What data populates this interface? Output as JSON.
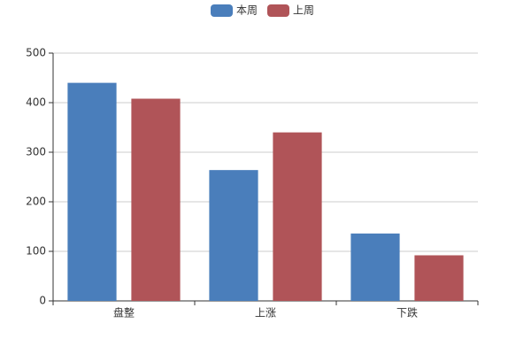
{
  "chart_data": {
    "type": "bar",
    "categories": [
      "盘整",
      "上涨",
      "下跌"
    ],
    "series": [
      {
        "name": "本周",
        "color": "#4a7ebb",
        "values": [
          440,
          264,
          136
        ]
      },
      {
        "name": "上周",
        "color": "#b05458",
        "values": [
          408,
          340,
          92
        ]
      }
    ],
    "ylim": [
      0,
      500
    ],
    "yticks": [
      0,
      100,
      200,
      300,
      400,
      500
    ],
    "grid": true,
    "legend": "top"
  }
}
